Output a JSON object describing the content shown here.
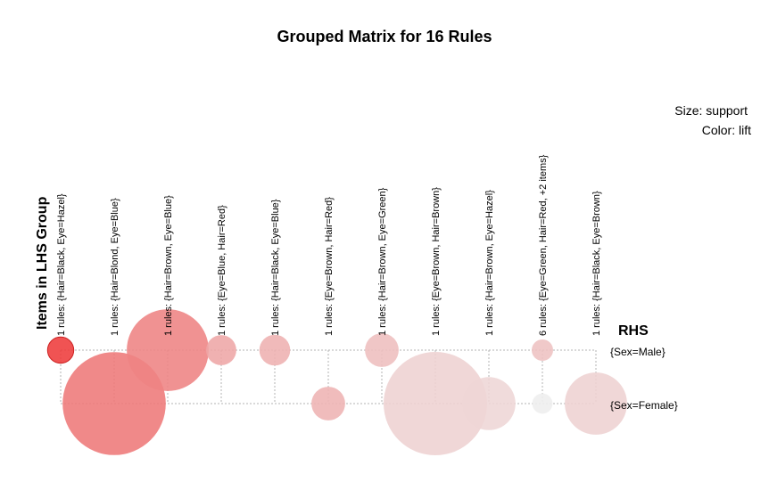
{
  "chart_data": {
    "type": "scatter",
    "title": "Grouped Matrix for 16 Rules",
    "legend": {
      "size": "Size: support",
      "color": "Color: lift"
    },
    "x_axis_label": "Items in LHS Group",
    "y_axis_label": "RHS",
    "lhs_groups": [
      "1 rules: {Hair=Black, Eye=Hazel}",
      "1 rules: {Hair=Blond, Eye=Blue}",
      "1 rules: {Hair=Brown, Eye=Blue}",
      "1 rules: {Eye=Blue, Hair=Red}",
      "1 rules: {Hair=Black, Eye=Blue}",
      "1 rules: {Eye=Brown, Hair=Red}",
      "1 rules: {Hair=Brown, Eye=Green}",
      "1 rules: {Eye=Brown, Hair=Brown}",
      "1 rules: {Hair=Brown, Eye=Hazel}",
      "6 rules: {Eye=Green, Hair=Red, +2 items}",
      "1 rules: {Hair=Black, Eye=Brown}"
    ],
    "rhs": [
      "{Sex=Male}",
      "{Sex=Female}"
    ],
    "points": [
      {
        "group": 0,
        "rhs": 0,
        "support": 0.015,
        "lift": 1.4
      },
      {
        "group": 1,
        "rhs": 1,
        "support": 0.233,
        "lift": 1.22
      },
      {
        "group": 2,
        "rhs": 0,
        "support": 0.147,
        "lift": 1.19
      },
      {
        "group": 3,
        "rhs": 0,
        "support": 0.02,
        "lift": 1.09
      },
      {
        "group": 4,
        "rhs": 0,
        "support": 0.021,
        "lift": 1.06
      },
      {
        "group": 5,
        "rhs": 1,
        "support": 0.025,
        "lift": 1.05
      },
      {
        "group": 6,
        "rhs": 0,
        "support": 0.025,
        "lift": 1.02
      },
      {
        "group": 7,
        "rhs": 1,
        "support": 0.235,
        "lift": 0.96
      },
      {
        "group": 8,
        "rhs": 1,
        "support": 0.062,
        "lift": 0.95
      },
      {
        "group": 9,
        "rhs": 0,
        "support": 0.01,
        "lift": 1.01
      },
      {
        "group": 9,
        "rhs": 1,
        "support": 0.009,
        "lift": 0.88
      },
      {
        "group": 10,
        "rhs": 1,
        "support": 0.085,
        "lift": 0.96
      }
    ],
    "color_scale": {
      "low": "#eeeeee",
      "high": "#ee3b3b",
      "lift_min": 0.88,
      "lift_max": 1.4
    }
  }
}
